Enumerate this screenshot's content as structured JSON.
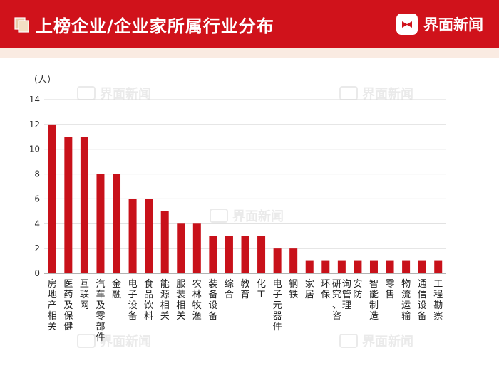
{
  "header": {
    "title": "上榜企业/企业家所属行业分布",
    "brand": "界面新闻",
    "background_color": "#d0121b",
    "accent_color": "#faebe2"
  },
  "watermark": {
    "text": "界面新闻"
  },
  "chart_data": {
    "type": "bar",
    "y_unit_label": "（人）",
    "ylim": [
      0,
      14
    ],
    "yticks": [
      0,
      2,
      4,
      6,
      8,
      10,
      12,
      14
    ],
    "grid": true,
    "bar_color": "#c8111a",
    "categories": [
      "房地产相关",
      "医药及保健",
      "互联网",
      "汽车及零部件",
      "金融",
      "电子设备",
      "食品饮料",
      "能源相关",
      "服装相关",
      "农林牧渔",
      "装备设备",
      "综合",
      "教育",
      "化工",
      "电子元器件",
      "钢铁",
      "家居",
      "环保",
      "研究、咨询管理",
      "安防",
      "智能制造",
      "零售",
      "物流运输",
      "通信设备",
      "工程勘察"
    ],
    "values": [
      12,
      11,
      11,
      8,
      8,
      6,
      6,
      5,
      4,
      4,
      3,
      3,
      3,
      3,
      2,
      2,
      1,
      1,
      1,
      1,
      1,
      1,
      1,
      1,
      1
    ]
  }
}
